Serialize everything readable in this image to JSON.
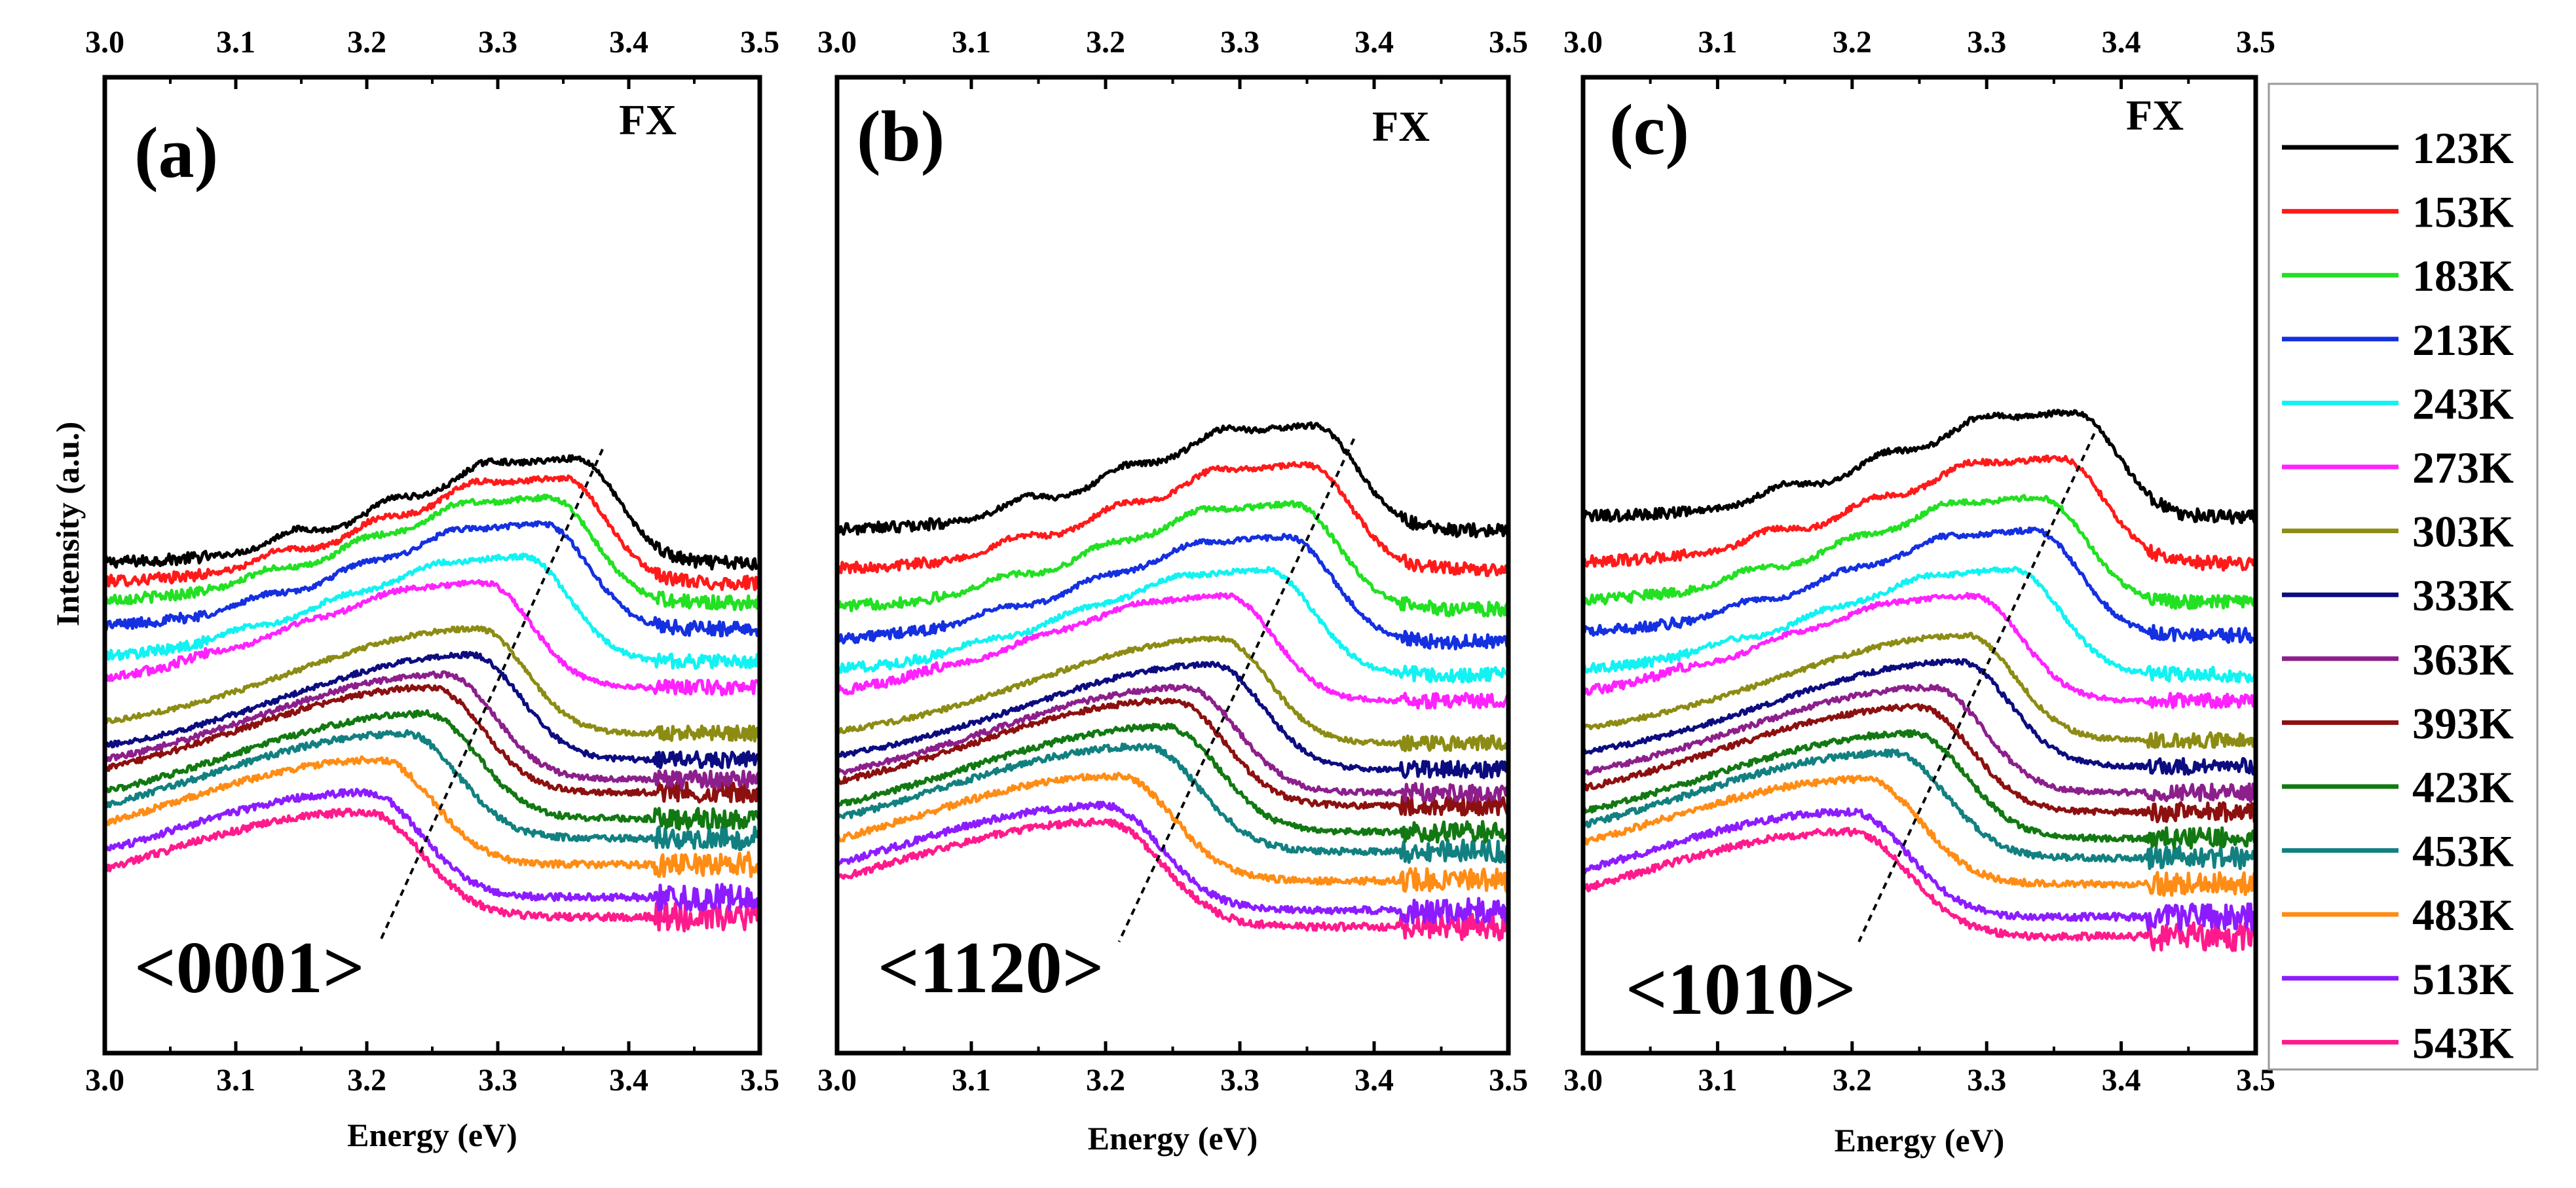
{
  "chart_data": {
    "type": "line",
    "ylabel": "Intensity (a.u.)",
    "xlabel": "Energy (eV)",
    "xlim": [
      3.0,
      3.5
    ],
    "xticks": [
      "3.0",
      "3.1",
      "3.2",
      "3.3",
      "3.4",
      "3.5"
    ],
    "temperatures_K": [
      123,
      153,
      183,
      213,
      243,
      273,
      303,
      333,
      363,
      393,
      423,
      453,
      483,
      513,
      543
    ],
    "legend": {
      "entries": [
        "123K",
        "153K",
        "183K",
        "213K",
        "243K",
        "273K",
        "303K",
        "333K",
        "363K",
        "393K",
        "423K",
        "453K",
        "483K",
        "513K",
        "543K"
      ],
      "colors": [
        "#000000",
        "#ff1a1a",
        "#22e022",
        "#1430e0",
        "#12f2f2",
        "#ff22ff",
        "#8c8c14",
        "#0c0c80",
        "#8c1f8c",
        "#8c1010",
        "#127812",
        "#128080",
        "#ff8c14",
        "#8c1cff",
        "#ff1a8c"
      ],
      "placement": "right"
    },
    "panels": [
      {
        "label": "(a)",
        "direction": "<0001>",
        "annotation": "FX",
        "peaks_eV": [
          3.36,
          3.35,
          3.34,
          3.335,
          3.32,
          3.29,
          3.285,
          3.28,
          3.26,
          3.25,
          3.245,
          3.23,
          3.21,
          3.2,
          3.2
        ],
        "offsets": [
          370,
          340,
          310,
          270,
          220,
          180,
          110,
          70,
          40,
          20,
          -20,
          -50,
          -90,
          -140,
          -170
        ],
        "fx_line": [
          [
            3.38,
            3.4
          ],
          [
            3.21,
            -1.3
          ]
        ]
      },
      {
        "label": "(b)",
        "direction": "<1120>",
        "annotation": "FX",
        "peaks_eV": [
          3.355,
          3.35,
          3.34,
          3.335,
          3.32,
          3.29,
          3.285,
          3.28,
          3.26,
          3.25,
          3.245,
          3.23,
          3.21,
          3.2,
          3.2
        ],
        "offsets": [
          420,
          360,
          300,
          250,
          200,
          160,
          95,
          55,
          20,
          0,
          -40,
          -70,
          -115,
          -160,
          -185
        ],
        "fx_line": [
          [
            3.385,
            3.5
          ],
          [
            3.21,
            -1.3
          ]
        ]
      },
      {
        "label": "(c)",
        "direction": "<1010>",
        "annotation": "FX",
        "peaks_eV": [
          3.365,
          3.355,
          3.34,
          3.335,
          3.32,
          3.29,
          3.285,
          3.28,
          3.26,
          3.25,
          3.245,
          3.23,
          3.21,
          3.2,
          3.2
        ],
        "offsets": [
          440,
          370,
          310,
          260,
          200,
          160,
          100,
          60,
          20,
          -10,
          -50,
          -80,
          -120,
          -170,
          -200
        ],
        "fx_line": [
          [
            3.38,
            3.55
          ],
          [
            3.205,
            -1.3
          ]
        ]
      }
    ]
  }
}
